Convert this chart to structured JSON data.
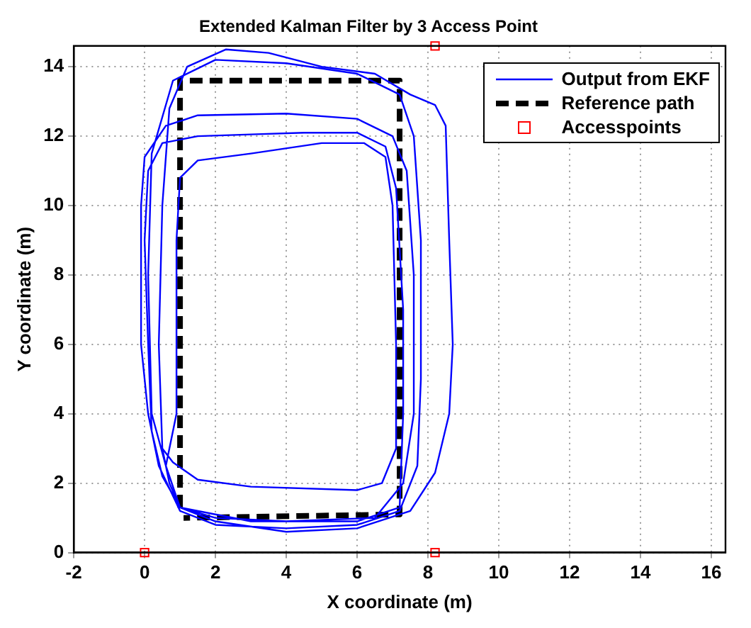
{
  "chart_data": {
    "type": "line",
    "title": "Extended Kalman Filter by 3 Access Point",
    "xlabel": "X coordinate (m)",
    "ylabel": "Y coordinate (m)",
    "xlim": [
      -2,
      16.4
    ],
    "ylim": [
      0,
      14.6
    ],
    "xticks": [
      -2,
      0,
      2,
      4,
      6,
      8,
      10,
      12,
      14,
      16
    ],
    "yticks": [
      0,
      2,
      4,
      6,
      8,
      10,
      12,
      14
    ],
    "grid": true,
    "legend": "top right",
    "series": [
      {
        "name": "Output from EKF",
        "color": "#0000ff",
        "line_style": "solid",
        "marker": "none",
        "x": [
          1,
          0.7,
          0.5,
          0.4,
          0.5,
          0.7,
          1.2,
          2.3,
          3.5,
          5,
          6.5,
          7.5,
          8.2,
          8.5,
          8.6,
          8.7,
          8.6,
          8.2,
          7.5,
          6,
          4,
          2,
          1,
          0.6,
          0.2,
          0.1,
          0.2,
          0.8,
          2,
          4,
          6,
          7.2,
          7.6,
          7.8,
          7.8,
          7.7,
          7.2,
          6,
          4,
          2,
          1,
          0.4,
          0.1,
          -0.1,
          -0.1,
          0,
          0.6,
          1.5,
          4,
          6,
          7,
          7.4,
          7.6,
          7.6,
          7.3,
          6.5,
          4,
          2,
          1,
          0.5,
          0.2,
          0.1,
          0,
          0.1,
          0.5,
          1.5,
          3,
          4.5,
          6,
          6.8,
          7.1,
          7.3,
          7.3,
          7.2,
          6,
          3,
          1,
          0.6,
          0.9,
          0.9,
          1,
          1.5,
          3,
          5,
          6.2,
          6.8,
          7,
          7.1,
          7.1,
          6.7,
          6,
          3,
          1.5,
          0.8,
          0.5
        ],
        "values": [
          1.3,
          2,
          3,
          6,
          10,
          12.8,
          14,
          14.5,
          14.4,
          14,
          13.8,
          13.2,
          12.9,
          12.3,
          9,
          6,
          4,
          2.3,
          1.2,
          0.7,
          0.6,
          0.9,
          1.3,
          2.5,
          4,
          8,
          11.5,
          13.6,
          14.2,
          14.1,
          13.8,
          13.2,
          12,
          9,
          5,
          2.5,
          1.2,
          0.8,
          0.7,
          0.8,
          1.2,
          2.5,
          4,
          6,
          10,
          11.4,
          12.3,
          12.6,
          12.65,
          12.5,
          12,
          11,
          8,
          4,
          2,
          1,
          0.9,
          1,
          1.3,
          2.2,
          3.5,
          6,
          9,
          11,
          11.8,
          12,
          12.05,
          12.1,
          12.1,
          11.7,
          10.5,
          7,
          4,
          1.3,
          0.9,
          0.9,
          1.3,
          2.5,
          4,
          9,
          10.8,
          11.3,
          11.5,
          11.8,
          11.8,
          11.4,
          10,
          6,
          3,
          2,
          1.8,
          1.9,
          2.1,
          2.6,
          3
        ]
      },
      {
        "name": "Reference path",
        "color": "#000000",
        "line_style": "dashed",
        "marker": "none",
        "x": [
          1,
          1,
          7.2,
          7.2,
          1.1
        ],
        "values": [
          1.3,
          13.6,
          13.6,
          1.1,
          1
        ]
      },
      {
        "name": "Accesspoints",
        "type": "scatter",
        "color": "#ff0000",
        "marker": "square",
        "x": [
          0,
          8.2,
          8.2
        ],
        "values": [
          0,
          0,
          14.6
        ]
      }
    ]
  }
}
